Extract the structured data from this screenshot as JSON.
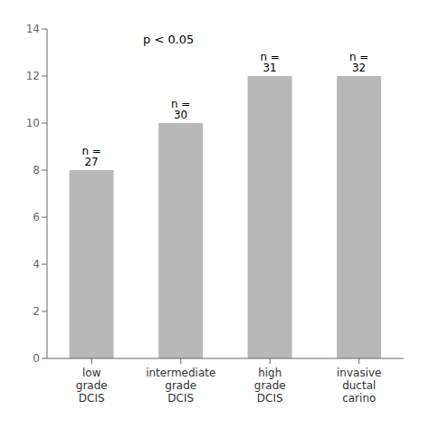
{
  "chart_data": {
    "type": "bar",
    "categories": [
      "low\ngrade\nDCIS",
      "intermediate\ngrade\nDCIS",
      "high\ngrade\nDCIS",
      "invasive\nductal\ncarino"
    ],
    "values": [
      8,
      10,
      12,
      12
    ],
    "labels": [
      "n = 27",
      "n = 30",
      "n = 31",
      "n = 32"
    ],
    "color": "#b8b8b8",
    "ylim": [
      0,
      14
    ],
    "yticks": [
      0,
      2,
      4,
      6,
      8,
      10,
      12,
      14
    ],
    "annotation": "p < 0.05",
    "grid": false
  }
}
